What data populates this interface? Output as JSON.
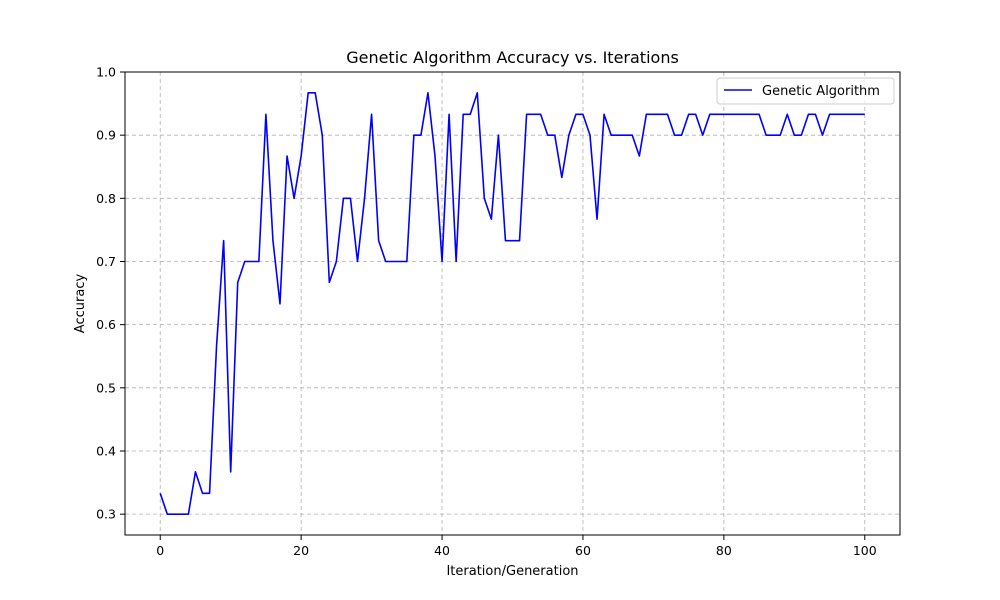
{
  "chart_data": {
    "type": "line",
    "title": "Genetic Algorithm Accuracy vs. Iterations",
    "xlabel": "Iteration/Generation",
    "ylabel": "Accuracy",
    "xlim": [
      -5,
      105
    ],
    "ylim": [
      0.267,
      1.0
    ],
    "xticks": [
      0,
      20,
      40,
      60,
      80,
      100
    ],
    "yticks": [
      0.3,
      0.4,
      0.5,
      0.6,
      0.7,
      0.8,
      0.9,
      1.0
    ],
    "grid": true,
    "legend_position": "top-right",
    "series": [
      {
        "name": "Genetic Algorithm",
        "color": "#0000ff",
        "x": [
          0,
          1,
          2,
          3,
          4,
          5,
          6,
          7,
          8,
          9,
          10,
          11,
          12,
          13,
          14,
          15,
          16,
          17,
          18,
          19,
          20,
          21,
          22,
          23,
          24,
          25,
          26,
          27,
          28,
          29,
          30,
          31,
          32,
          33,
          34,
          35,
          36,
          37,
          38,
          39,
          40,
          41,
          42,
          43,
          44,
          45,
          46,
          47,
          48,
          49,
          50,
          51,
          52,
          53,
          54,
          55,
          56,
          57,
          58,
          59,
          60,
          61,
          62,
          63,
          64,
          65,
          66,
          67,
          68,
          69,
          70,
          71,
          72,
          73,
          74,
          75,
          76,
          77,
          78,
          79,
          80,
          81,
          82,
          83,
          84,
          85,
          86,
          87,
          88,
          89,
          90,
          91,
          92,
          93,
          94,
          95,
          96,
          97,
          98,
          99,
          100
        ],
        "values": [
          0.333,
          0.3,
          0.3,
          0.3,
          0.3,
          0.367,
          0.333,
          0.333,
          0.567,
          0.733,
          0.367,
          0.667,
          0.7,
          0.7,
          0.7,
          0.933,
          0.733,
          0.633,
          0.867,
          0.8,
          0.867,
          0.967,
          0.967,
          0.9,
          0.667,
          0.7,
          0.8,
          0.8,
          0.7,
          0.8,
          0.933,
          0.733,
          0.7,
          0.7,
          0.7,
          0.7,
          0.9,
          0.9,
          0.967,
          0.867,
          0.7,
          0.933,
          0.7,
          0.933,
          0.933,
          0.967,
          0.8,
          0.767,
          0.9,
          0.733,
          0.733,
          0.733,
          0.933,
          0.933,
          0.933,
          0.9,
          0.9,
          0.833,
          0.9,
          0.933,
          0.933,
          0.9,
          0.767,
          0.933,
          0.9,
          0.9,
          0.9,
          0.9,
          0.867,
          0.933,
          0.933,
          0.933,
          0.933,
          0.9,
          0.9,
          0.933,
          0.933,
          0.9,
          0.933,
          0.933,
          0.933,
          0.933,
          0.933,
          0.933,
          0.933,
          0.933,
          0.9,
          0.9,
          0.9,
          0.933,
          0.9,
          0.9,
          0.933,
          0.933,
          0.9,
          0.933,
          0.933,
          0.933,
          0.933,
          0.933,
          0.933
        ]
      }
    ]
  },
  "tick_format": {
    "xticks": [
      "0",
      "20",
      "40",
      "60",
      "80",
      "100"
    ],
    "yticks": [
      "0.3",
      "0.4",
      "0.5",
      "0.6",
      "0.7",
      "0.8",
      "0.9",
      "1.0"
    ]
  }
}
